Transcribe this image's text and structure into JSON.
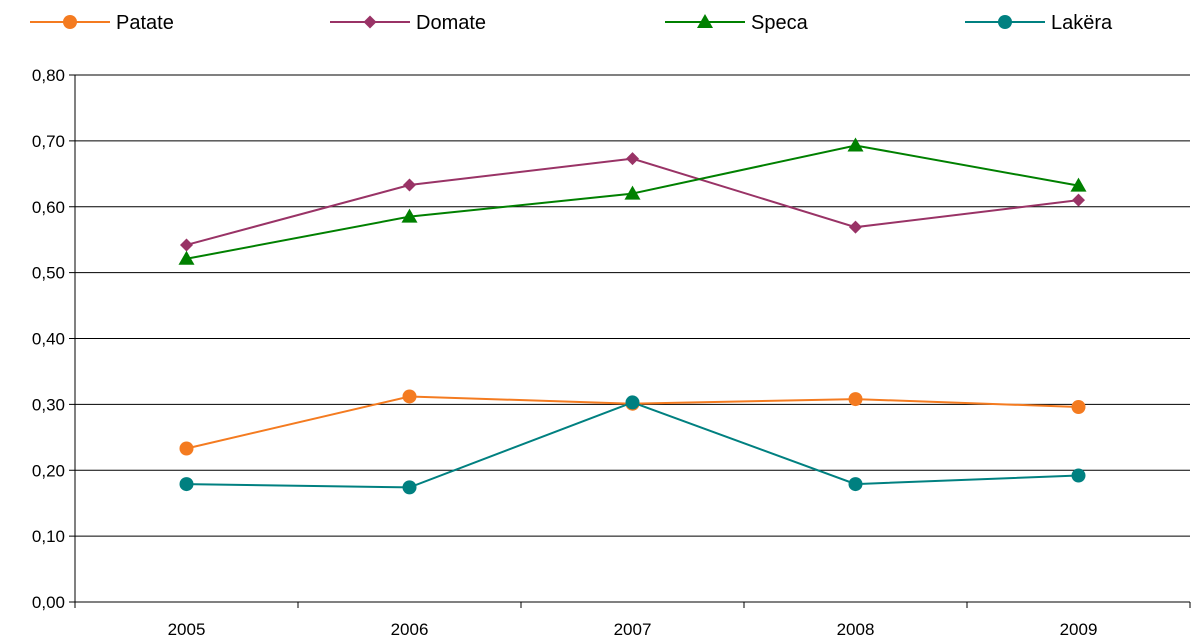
{
  "chart_data": {
    "type": "line",
    "title": "",
    "xlabel": "",
    "ylabel": "",
    "categories": [
      "2005",
      "2006",
      "2007",
      "2008",
      "2009"
    ],
    "ylim": [
      0,
      0.8
    ],
    "yticks": [
      "0,00",
      "0,10",
      "0,20",
      "0,30",
      "0,40",
      "0,50",
      "0,60",
      "0,70",
      "0,80"
    ],
    "grid": true,
    "legend_position": "top",
    "series": [
      {
        "name": "Patate",
        "color": "#F47B20",
        "marker": "circle",
        "values": [
          0.233,
          0.312,
          0.301,
          0.308,
          0.296
        ]
      },
      {
        "name": "Domate",
        "color": "#993366",
        "marker": "diamond",
        "values": [
          0.542,
          0.633,
          0.673,
          0.569,
          0.61
        ]
      },
      {
        "name": "Speca",
        "color": "#008000",
        "marker": "triangle",
        "values": [
          0.521,
          0.585,
          0.62,
          0.693,
          0.632
        ]
      },
      {
        "name": "Lakëra",
        "color": "#008080",
        "marker": "circle",
        "values": [
          0.179,
          0.174,
          0.303,
          0.179,
          0.192
        ]
      }
    ]
  }
}
